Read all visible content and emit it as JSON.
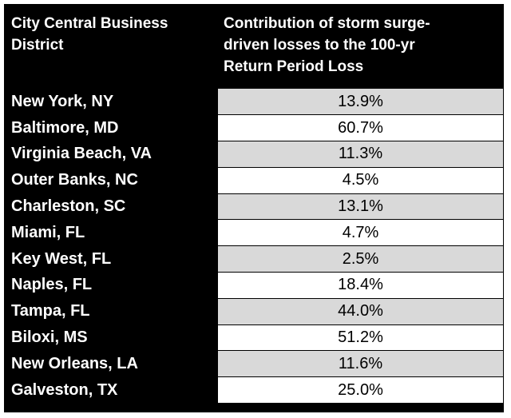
{
  "chart_data": {
    "type": "table",
    "columns": [
      "City Central Business District",
      "Contribution of storm surge-driven losses to the 100-yr Return Period Loss"
    ],
    "header_lines": {
      "col1": [
        "City Central Business",
        "District"
      ],
      "col2": [
        "Contribution of storm surge-",
        "driven losses to the 100-yr",
        "Return Period Loss"
      ]
    },
    "rows": [
      {
        "city": "New York, NY",
        "value": "13.9%"
      },
      {
        "city": "Baltimore, MD",
        "value": "60.7%"
      },
      {
        "city": "Virginia Beach, VA",
        "value": "11.3%"
      },
      {
        "city": "Outer Banks, NC",
        "value": "4.5%"
      },
      {
        "city": "Charleston, SC",
        "value": "13.1%"
      },
      {
        "city": "Miami, FL",
        "value": "4.7%"
      },
      {
        "city": "Key West, FL",
        "value": "2.5%"
      },
      {
        "city": "Naples, FL",
        "value": "18.4%"
      },
      {
        "city": "Tampa, FL",
        "value": "44.0%"
      },
      {
        "city": "Biloxi, MS",
        "value": "51.2%"
      },
      {
        "city": "New Orleans, LA",
        "value": "11.6%"
      },
      {
        "city": "Galveston, TX",
        "value": "25.0%"
      }
    ],
    "colors": {
      "header_bg": "#000000",
      "header_text": "#ffffff",
      "row_alt": "#d9d9d9",
      "row_plain": "#ffffff"
    }
  }
}
